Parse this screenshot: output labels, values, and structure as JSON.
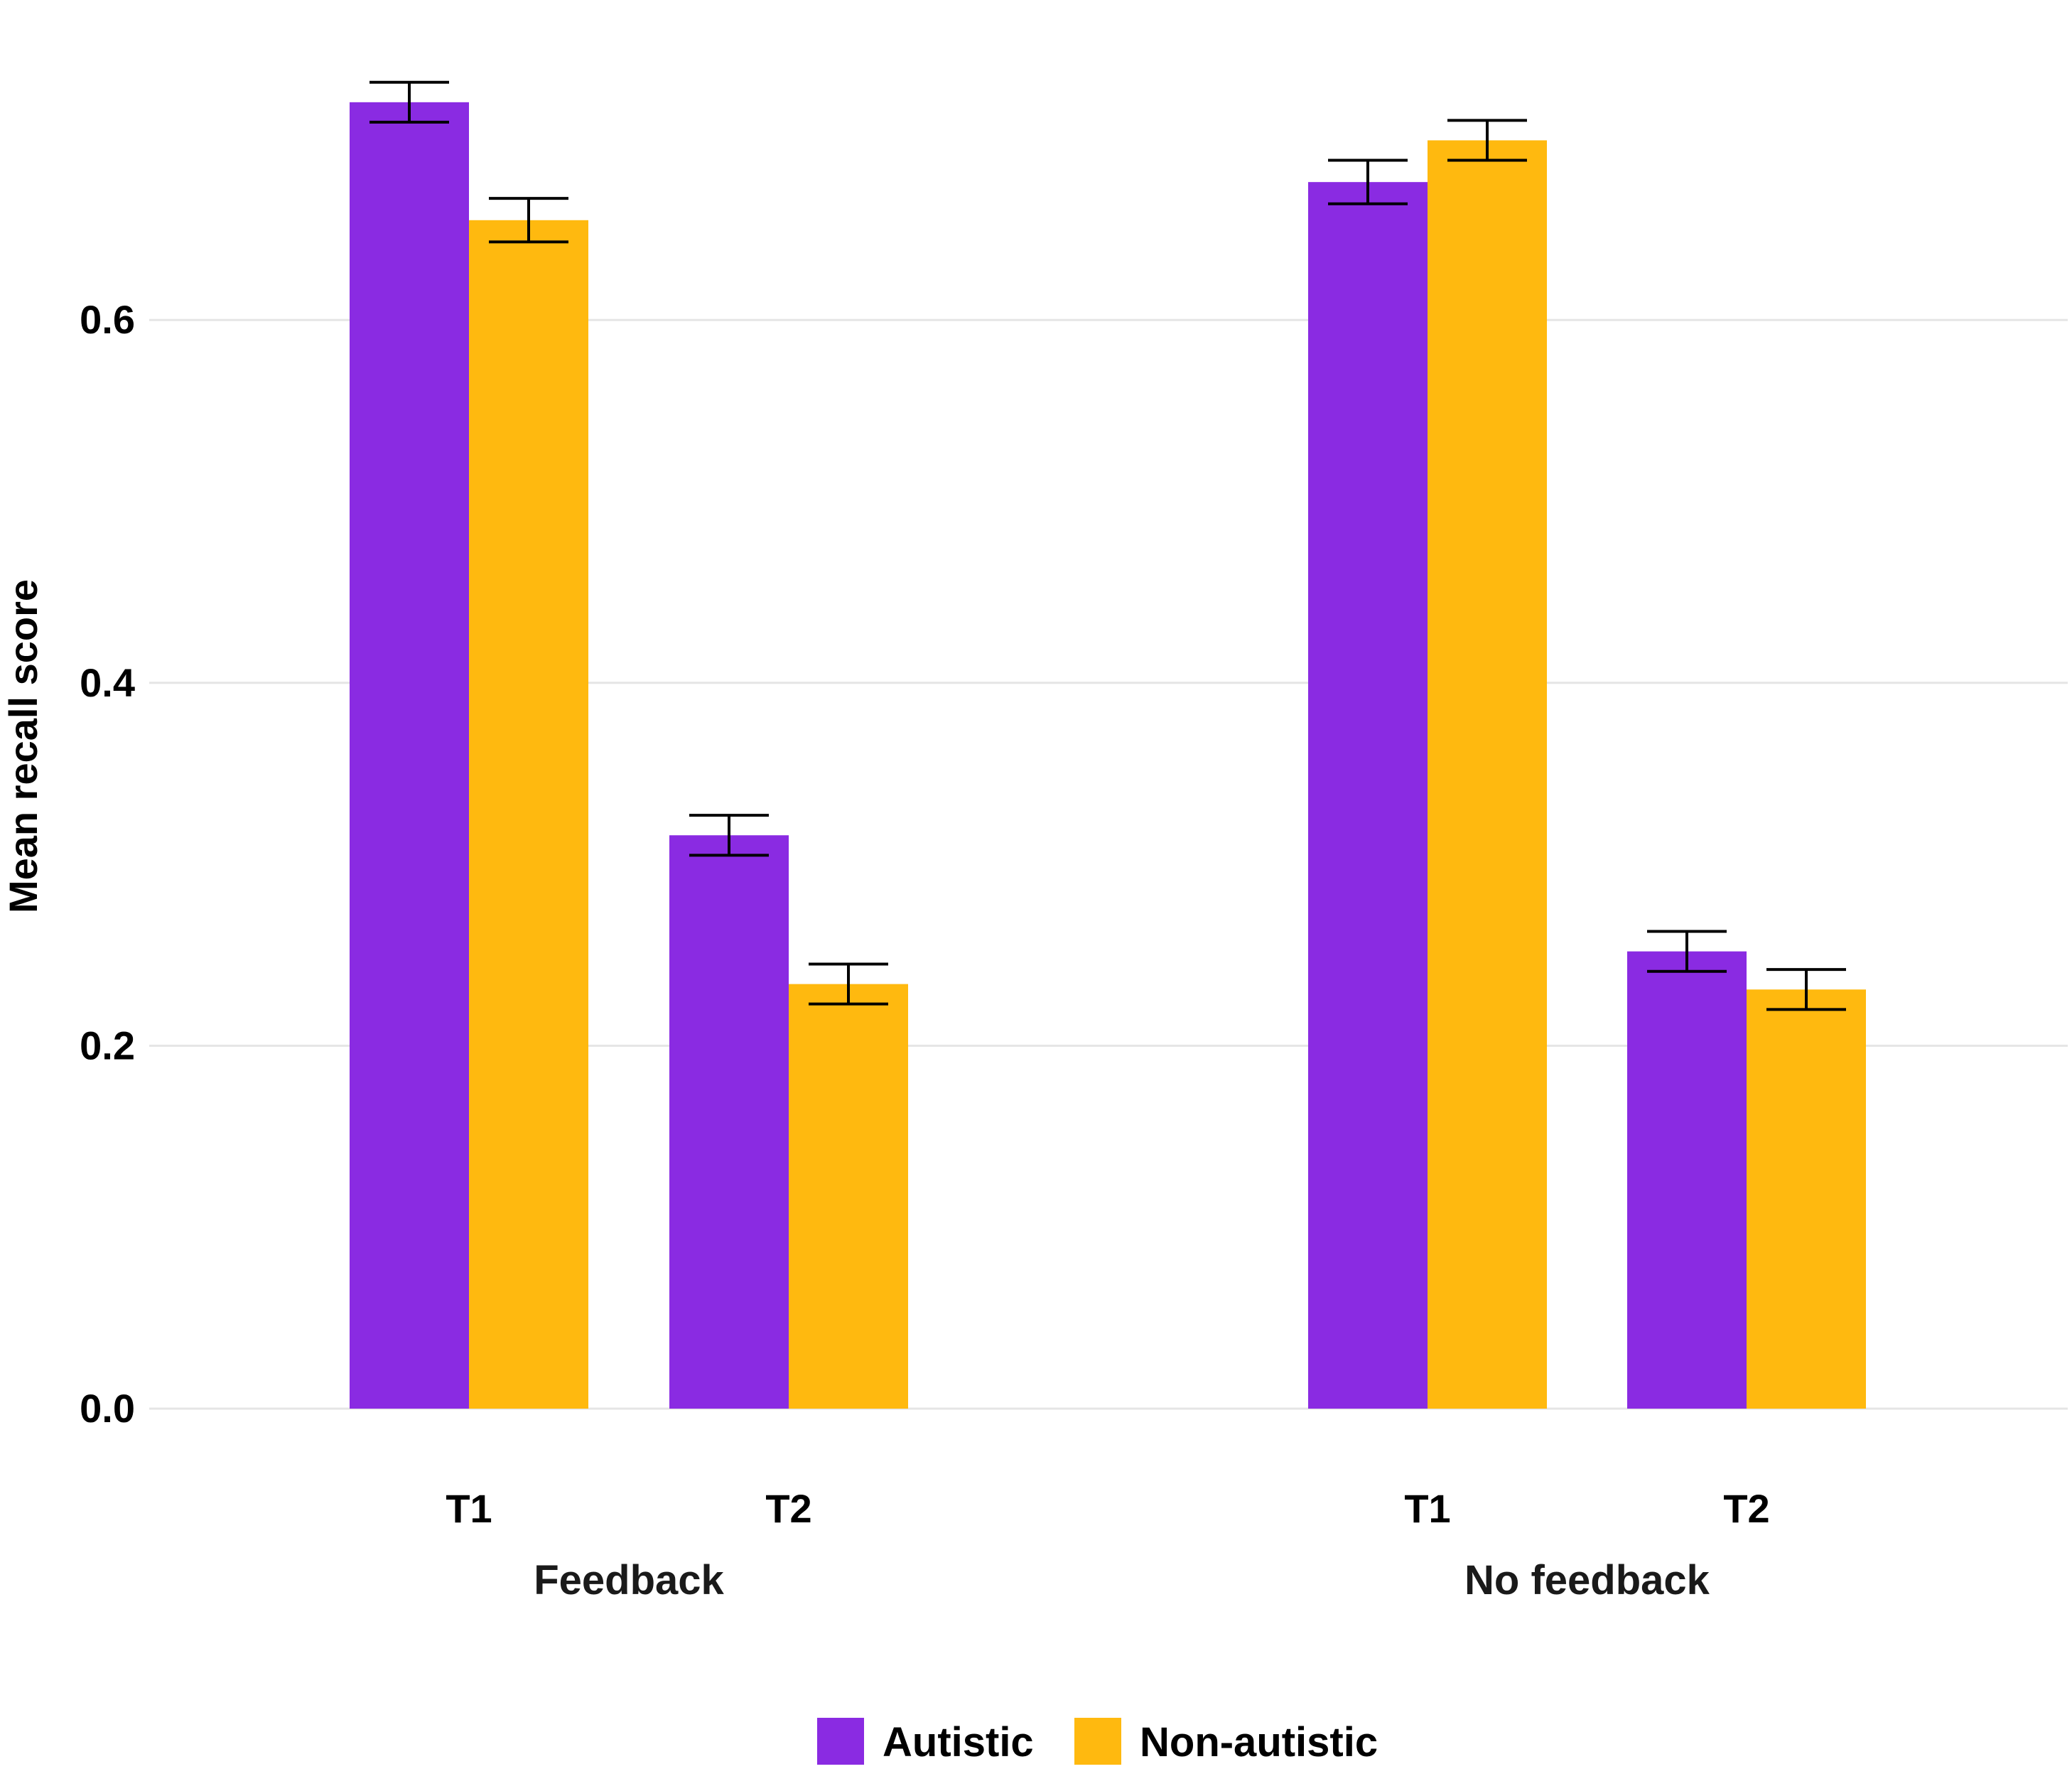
{
  "chart_data": {
    "type": "bar",
    "title": "",
    "xlabel": "",
    "ylabel": "Mean recall score",
    "ylim": [
      0,
      0.72
    ],
    "yticks": [
      0.0,
      0.2,
      0.4,
      0.6
    ],
    "ytick_labels": [
      "0.0",
      "0.2",
      "0.4",
      "0.6"
    ],
    "grid": "horizontal",
    "legend_position": "bottom",
    "groups": [
      {
        "label": "Feedback",
        "categories": [
          "T1",
          "T2"
        ]
      },
      {
        "label": "No feedback",
        "categories": [
          "T1",
          "T2"
        ]
      }
    ],
    "series": [
      {
        "name": "Autistic",
        "color": "#8A2BE2",
        "values": [
          0.72,
          0.316,
          0.676,
          0.252
        ],
        "error": [
          0.011,
          0.011,
          0.012,
          0.011
        ]
      },
      {
        "name": "Non-autistic",
        "color": "#FFB90F",
        "values": [
          0.655,
          0.234,
          0.699,
          0.231
        ],
        "error": [
          0.012,
          0.011,
          0.011,
          0.011
        ]
      }
    ]
  }
}
